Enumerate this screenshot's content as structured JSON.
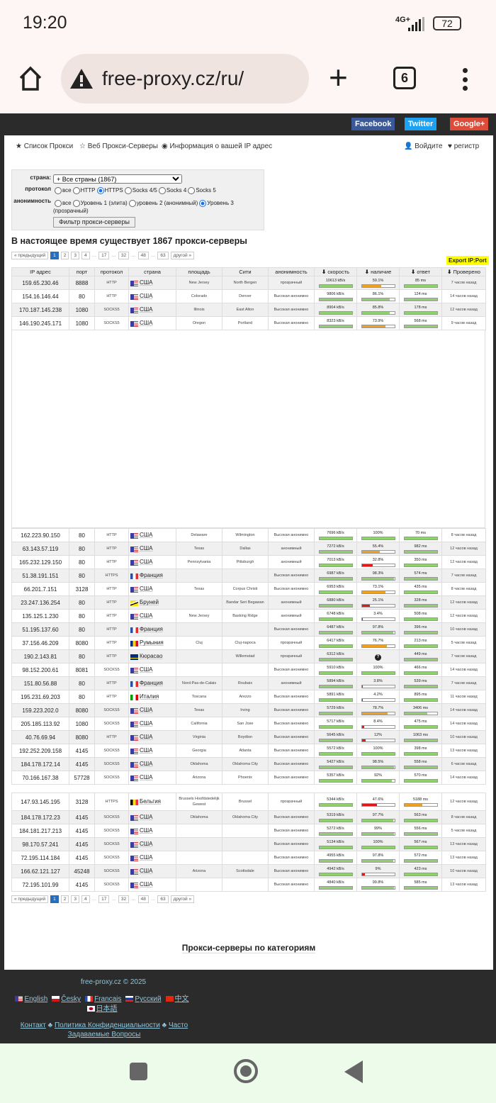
{
  "status": {
    "time": "19:20",
    "network": "4G+",
    "battery": "72"
  },
  "browser": {
    "url": "free-proxy.cz/ru/",
    "tab_count": "6"
  },
  "social": {
    "facebook": "Facebook",
    "twitter": "Twitter",
    "google": "Google+"
  },
  "nav": {
    "proxy_list": "Список Прокси",
    "web_proxy": "Веб Прокси-Серверы",
    "ip_info": "Информация о вашей IP адрес",
    "login": "Войдите",
    "register": "регистр"
  },
  "filter": {
    "country_label": "страна:",
    "country_value": "+ Все страны (1867)",
    "protocol_label": "протокол",
    "protocols": [
      "все",
      "HTTP",
      "HTTPS",
      "Socks 4/5",
      "Socks 4",
      "Socks 5"
    ],
    "protocol_selected": "HTTPS",
    "anon_label": "анонимность",
    "anon_options": [
      "все",
      "Уровень 1 (элита)",
      "уровень 2 (анонимный)",
      "Уровень 3 (прозрачный)"
    ],
    "anon_selected": "Уровень 3 (прозрачный)",
    "button": "Фильтр прокси-серверы"
  },
  "heading": "В настоящее время существует 1867 прокси-серверы",
  "pagination": {
    "prev": "« предыдущий",
    "pages": [
      "1",
      "2",
      "3",
      "4",
      "17",
      "32",
      "48",
      "63"
    ],
    "current": "1",
    "next": "другой »"
  },
  "export": "Export IP:Port",
  "columns": [
    "IP адрес",
    "порт",
    "протокол",
    "страна",
    "площадь",
    "Сити",
    "анонимность",
    "скорость",
    "наличие",
    "ответ",
    "Проверено"
  ],
  "colors": {
    "green": "#8fd16c",
    "orange": "#f0a020",
    "red": "#e01818"
  },
  "rows_top": [
    [
      "159.65.230.46",
      "8888",
      "HTTP",
      "us",
      "США",
      "New Jersey",
      "North Bergen",
      "прозрачный",
      "10613 kB/s",
      "59.1%",
      "85 ms",
      "7 часов назад"
    ],
    [
      "154.16.146.44",
      "80",
      "HTTP",
      "us",
      "США",
      "Colorado",
      "Denver",
      "Высокая анонимно",
      "9806 kB/s",
      "86.1%",
      "124 ms",
      "14 часов назад"
    ],
    [
      "170.187.145.238",
      "1080",
      "SOCKS5",
      "us",
      "США",
      "Illinois",
      "East Alton",
      "Высокая анонимно",
      "8904 kB/s",
      "85.8%",
      "178 ms",
      "12 часов назад"
    ],
    [
      "146.190.245.171",
      "1080",
      "SOCKS5",
      "us",
      "США",
      "Oregon",
      "Portland",
      "Высокая анонимно",
      "8323 kB/s",
      "73.9%",
      "568 ms",
      "9 часов назад"
    ]
  ],
  "rows_mid": [
    [
      "162.223.90.150",
      "80",
      "HTTP",
      "us",
      "США",
      "Delaware",
      "Wilmington",
      "Высокая анонимно",
      "7696 kB/s",
      "100%",
      "70 ms",
      "8 часов назад"
    ],
    [
      "63.143.57.119",
      "80",
      "HTTP",
      "us",
      "США",
      "Texas",
      "Dallas",
      "анонимный",
      "7272 kB/s",
      "55.4%",
      "982 ms",
      "12 часов назад"
    ],
    [
      "165.232.129.150",
      "80",
      "HTTP",
      "us",
      "США",
      "Pennsylvania",
      "Pittsburgh",
      "анонимный",
      "7013 kB/s",
      "32.8%",
      "350 ms",
      "12 часов назад"
    ],
    [
      "51.38.191.151",
      "80",
      "HTTPS",
      "fr",
      "Франция",
      "",
      "",
      "Высокая анонимно",
      "6987 kB/s",
      "98.3%",
      "574 ms",
      "7 часов назад"
    ],
    [
      "66.201.7.151",
      "3128",
      "HTTP",
      "us",
      "США",
      "Texas",
      "Corpus Christi",
      "Высокая анонимно",
      "6953 kB/s",
      "73.1%",
      "435 ms",
      "8 часов назад"
    ],
    [
      "23.247.136.254",
      "80",
      "HTTP",
      "bn",
      "Бруней",
      "",
      "Bandar Seri Begawan",
      "анонимный",
      "6880 kB/s",
      "25.1%",
      "328 ms",
      "12 часов назад"
    ],
    [
      "135.125.1.230",
      "80",
      "HTTP",
      "us",
      "США",
      "New Jersey",
      "Basking Ridge",
      "анонимный",
      "6748 kB/s",
      "3.4%",
      "508 ms",
      "12 часов назад"
    ],
    [
      "51.195.137.60",
      "80",
      "HTTP",
      "fr",
      "Франция",
      "",
      "",
      "Высокая анонимно",
      "6487 kB/s",
      "97.8%",
      "396 ms",
      "10 часов назад"
    ],
    [
      "37.156.46.209",
      "8080",
      "HTTP",
      "ro",
      "Румыния",
      "Cluj",
      "Cluj-napoca",
      "прозрачный",
      "6417 kB/s",
      "76.7%",
      "213 ms",
      "5 часов назад"
    ],
    [
      "190.2.143.81",
      "80",
      "HTTP",
      "cw",
      "Кюрасао",
      "",
      "Willemstad",
      "прозрачный",
      "6312 kB/s",
      "?",
      "449 ms",
      "7 часов назад"
    ],
    [
      "98.152.200.61",
      "8081",
      "SOCKS5",
      "us",
      "США",
      "",
      "",
      "Высокая анонимно",
      "5910 kB/s",
      "100%",
      "466 ms",
      "14 часов назад"
    ],
    [
      "151.80.56.88",
      "80",
      "HTTP",
      "fr",
      "Франция",
      "Nord-Pas-de-Calais",
      "Roubaix",
      "анонимный",
      "5894 kB/s",
      "3.8%",
      "539 ms",
      "7 часов назад"
    ],
    [
      "195.231.69.203",
      "80",
      "HTTP",
      "it",
      "Италия",
      "Toscana",
      "Arezzo",
      "Высокая анонимно",
      "5891 kB/s",
      "4.2%",
      "895 ms",
      "11 часов назад"
    ],
    [
      "159.223.202.0",
      "8080",
      "SOCKS5",
      "us",
      "США",
      "Texas",
      "Irving",
      "Высокая анонимно",
      "5729 kB/s",
      "78.7%",
      "3406 ms",
      "14 часов назад"
    ],
    [
      "205.185.113.92",
      "1080",
      "SOCKS5",
      "us",
      "США",
      "California",
      "San Jose",
      "Высокая анонимно",
      "5717 kB/s",
      "8.4%",
      "475 ms",
      "14 часов назад"
    ],
    [
      "40.76.69.94",
      "8080",
      "HTTP",
      "us",
      "США",
      "Virginia",
      "Boydton",
      "Высокая анонимно",
      "5645 kB/s",
      "12%",
      "1063 ms",
      "10 часов назад"
    ],
    [
      "192.252.209.158",
      "4145",
      "SOCKS5",
      "us",
      "США",
      "Georgia",
      "Atlanta",
      "Высокая анонимно",
      "5572 kB/s",
      "100%",
      "398 ms",
      "13 часов назад"
    ],
    [
      "184.178.172.14",
      "4145",
      "SOCKS5",
      "us",
      "США",
      "Oklahoma",
      "Oklahoma City",
      "Высокая анонимно",
      "5427 kB/s",
      "98.5%",
      "558 ms",
      "6 часов назад"
    ],
    [
      "70.166.167.38",
      "57728",
      "SOCKS5",
      "us",
      "США",
      "Arizona",
      "Phoenix",
      "Высокая анонимно",
      "5357 kB/s",
      "92%",
      "570 ms",
      "14 часов назад"
    ]
  ],
  "rows_bottom": [
    [
      "147.93.145.195",
      "3128",
      "HTTPS",
      "be",
      "Бельгия",
      "Brussels Hoofdstedelijk Gewest",
      "Brussel",
      "прозрачный",
      "5344 kB/s",
      "47.6%",
      "5188 ms",
      "12 часов назад"
    ],
    [
      "184.178.172.23",
      "4145",
      "SOCKS5",
      "us",
      "США",
      "Oklahoma",
      "Oklahoma City",
      "Высокая анонимно",
      "5319 kB/s",
      "97.7%",
      "563 ms",
      "8 часов назад"
    ],
    [
      "184.181.217.213",
      "4145",
      "SOCKS5",
      "us",
      "США",
      "",
      "",
      "Высокая анонимно",
      "5272 kB/s",
      "99%",
      "556 ms",
      "5 часов назад"
    ],
    [
      "98.170.57.241",
      "4145",
      "SOCKS5",
      "us",
      "США",
      "",
      "",
      "Высокая анонимно",
      "5134 kB/s",
      "100%",
      "567 ms",
      "13 часов назад"
    ],
    [
      "72.195.114.184",
      "4145",
      "SOCKS5",
      "us",
      "США",
      "",
      "",
      "Высокая анонимно",
      "4955 kB/s",
      "97.8%",
      "572 ms",
      "13 часов назад"
    ],
    [
      "166.62.121.127",
      "45248",
      "SOCKS5",
      "us",
      "США",
      "Arizona",
      "Scottsdale",
      "Высокая анонимно",
      "4942 kB/s",
      "9%",
      "423 ms",
      "10 часов назад"
    ],
    [
      "72.195.101.99",
      "4145",
      "SOCKS5",
      "us",
      "США",
      "",
      "",
      "Высокая анонимно",
      "4840 kB/s",
      "99.8%",
      "585 ms",
      "13 часов назад"
    ]
  ],
  "categories_title": "Прокси-серверы по категориям",
  "footer": {
    "copyright": "free-proxy.cz © 2025",
    "languages": [
      "English",
      "Česky",
      "Francais",
      "Русский",
      "中文",
      "日本語"
    ],
    "links": [
      "Контакт",
      "Политика Конфиденциальности",
      "Часто Задаваемые Вопросы"
    ]
  }
}
